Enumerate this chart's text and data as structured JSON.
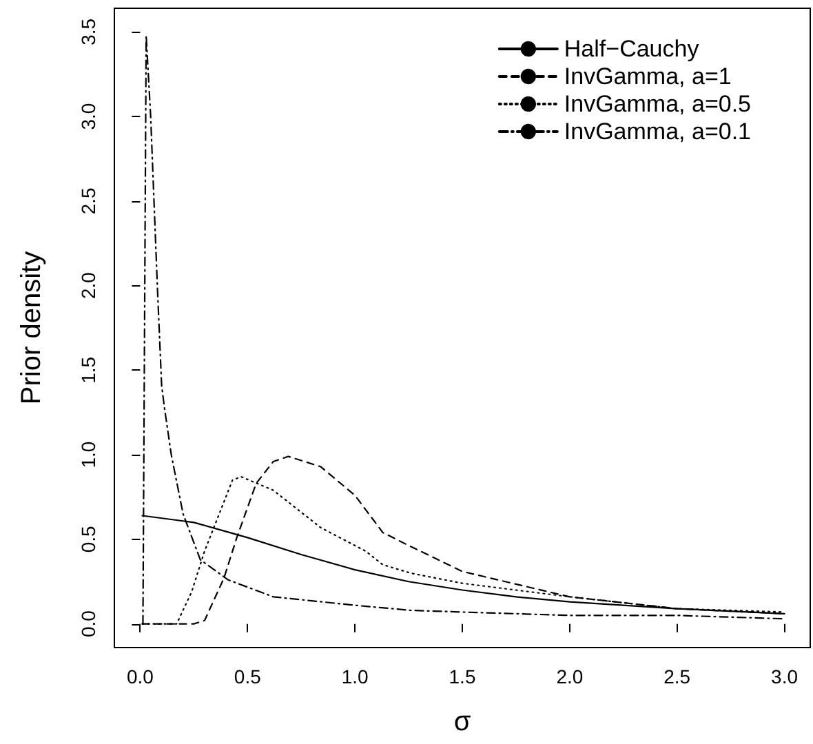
{
  "chart_data": {
    "type": "line",
    "xlabel": "σ",
    "ylabel": "Prior density",
    "xlim": [
      -0.12,
      3.12
    ],
    "ylim": [
      -0.14,
      3.64
    ],
    "xticks": [
      {
        "value": 0,
        "label": "0.0"
      },
      0.5,
      {
        "value": 1,
        "label": "1.0"
      },
      1.5,
      {
        "value": 2,
        "label": "2.0"
      },
      2.5,
      {
        "value": 3,
        "label": "3.0"
      }
    ],
    "yticks": [
      {
        "value": 0,
        "label": "0.0"
      },
      0.5,
      {
        "value": 1,
        "label": "1.0"
      },
      1.5,
      {
        "value": 2,
        "label": "2.0"
      },
      2.5,
      {
        "value": 3,
        "label": "3.0"
      },
      3.5
    ],
    "grid": false,
    "legend": "top right",
    "marker": "none",
    "series": [
      {
        "name": "Half−Cauchy",
        "color": "#000000",
        "line_style": "solid",
        "x": [
          0.01,
          0.25,
          0.5,
          0.75,
          1,
          1.25,
          1.5,
          1.75,
          2,
          2.5,
          3
        ],
        "values": [
          0.64,
          0.6,
          0.51,
          0.41,
          0.32,
          0.25,
          0.2,
          0.16,
          0.13,
          0.09,
          0.06
        ]
      },
      {
        "name": "InvGamma, a=1",
        "color": "#000000",
        "line_style": "dashed",
        "x": [
          0.01,
          0.25,
          0.3,
          0.39,
          0.45,
          0.54,
          0.62,
          0.69,
          0.84,
          1,
          1.13,
          1.24,
          1.5,
          2,
          2.5,
          3
        ],
        "values": [
          0,
          0,
          0.02,
          0.27,
          0.51,
          0.83,
          0.96,
          0.99,
          0.93,
          0.76,
          0.54,
          0.47,
          0.31,
          0.16,
          0.09,
          0.06
        ]
      },
      {
        "name": "InvGamma, a=0.5",
        "color": "#000000",
        "line_style": "dotted",
        "x": [
          0.01,
          0.17,
          0.24,
          0.3,
          0.43,
          0.47,
          0.62,
          0.84,
          1.05,
          1.13,
          1.26,
          1.5,
          2,
          2.5,
          3
        ],
        "values": [
          0,
          0,
          0.19,
          0.43,
          0.85,
          0.87,
          0.79,
          0.57,
          0.43,
          0.35,
          0.3,
          0.24,
          0.16,
          0.09,
          0.07
        ]
      },
      {
        "name": "InvGamma, a=0.1",
        "color": "#000000",
        "line_style": "dashdot",
        "x": [
          0.013,
          0.028,
          0.049,
          0.08,
          0.1,
          0.113,
          0.145,
          0.2,
          0.28,
          0.41,
          0.62,
          1,
          1.26,
          1.5,
          2,
          2.5,
          3
        ],
        "values": [
          0,
          3.48,
          3.0,
          2.0,
          1.41,
          1.28,
          1.0,
          0.65,
          0.38,
          0.26,
          0.16,
          0.11,
          0.08,
          0.07,
          0.05,
          0.05,
          0.03
        ]
      }
    ]
  }
}
